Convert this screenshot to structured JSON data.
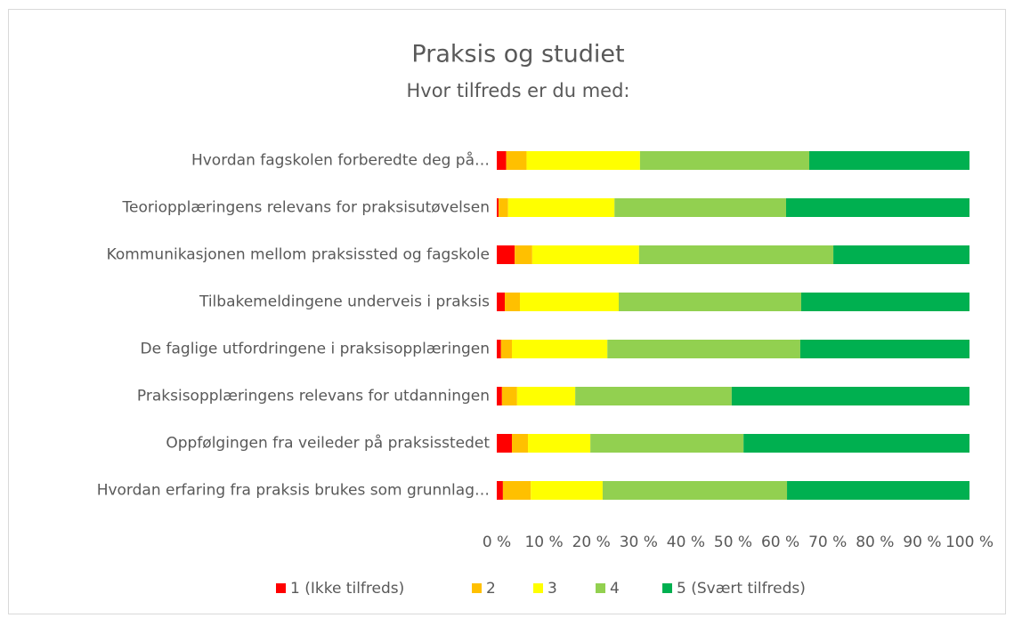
{
  "chart_data": {
    "type": "bar",
    "orientation": "horizontal",
    "stacked": true,
    "title": "Praksis og studiet",
    "subtitle": "Hvor tilfreds er du med:",
    "categories": [
      "Hvordan fagskolen forberedte deg på…",
      "Teoriopplæringens relevans for praksisutøvelsen",
      "Kommunikasjonen mellom praksissted og fagskole",
      "Tilbakemeldingene underveis i praksis",
      "De faglige utfordringene i praksisopplæringen",
      "Praksisopplæringens relevans for utdanningen",
      "Oppfølgingen fra veileder på praksisstedet",
      "Hvordan erfaring fra praksis brukes som grunnlag…"
    ],
    "series": [
      {
        "name": "1 (Ikke tilfreds)",
        "color": "#ff0000",
        "values": [
          2.0,
          0.4,
          3.8,
          1.7,
          0.9,
          1.1,
          3.2,
          1.3
        ]
      },
      {
        "name": "2",
        "color": "#ffc000",
        "values": [
          4.3,
          2.0,
          3.7,
          3.2,
          2.3,
          3.2,
          3.4,
          5.9
        ]
      },
      {
        "name": "3",
        "color": "#ffff00",
        "values": [
          24.0,
          22.5,
          22.6,
          20.9,
          20.2,
          12.3,
          13.2,
          15.2
        ]
      },
      {
        "name": "4",
        "color": "#92d050",
        "values": [
          35.8,
          36.3,
          41.1,
          38.6,
          40.8,
          33.1,
          32.4,
          39.0
        ]
      },
      {
        "name": "5 (Svært tilfreds)",
        "color": "#00b050",
        "values": [
          33.9,
          38.8,
          28.8,
          35.6,
          35.8,
          50.3,
          47.8,
          38.6
        ]
      }
    ],
    "xlim": [
      0,
      100
    ],
    "xticks": [
      {
        "value": 0,
        "label": "0 %"
      },
      {
        "value": 10,
        "label": "10 %"
      },
      {
        "value": 20,
        "label": "20 %"
      },
      {
        "value": 30,
        "label": "30 %"
      },
      {
        "value": 40,
        "label": "40 %"
      },
      {
        "value": 50,
        "label": "50 %"
      },
      {
        "value": 60,
        "label": "60 %"
      },
      {
        "value": 70,
        "label": "70 %"
      },
      {
        "value": 80,
        "label": "80 %"
      },
      {
        "value": 90,
        "label": "90 %"
      },
      {
        "value": 100,
        "label": "100 %"
      }
    ],
    "legend": "bottom"
  }
}
